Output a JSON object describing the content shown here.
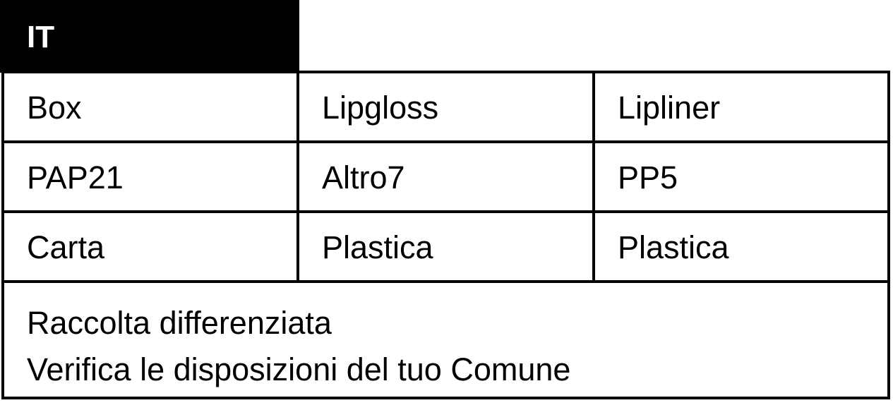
{
  "header": {
    "label": "IT"
  },
  "rows": [
    [
      "Box",
      "Lipgloss",
      "Lipliner"
    ],
    [
      "PAP21",
      "Altro7",
      "PP5"
    ],
    [
      "Carta",
      "Plastica",
      "Plastica"
    ]
  ],
  "note": {
    "line1": "Raccolta differenziata",
    "line2": "Verifica le disposizioni del tuo Comune"
  }
}
